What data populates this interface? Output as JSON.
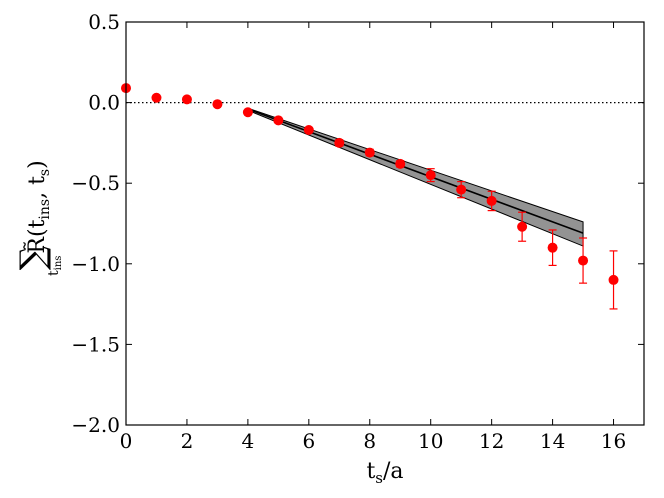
{
  "chart_data": {
    "type": "scatter",
    "xlabel": {
      "main": "t",
      "sub": "s",
      "rest": "/a"
    },
    "ylabel": {
      "sum": "∑",
      "sum_sub": "t",
      "sum_sub2": "ins",
      "main": "R̃(t",
      "arg1_sub": "ins",
      "sep": ", t",
      "arg2_sub": "s",
      "close": ")"
    },
    "xlim": [
      0,
      17
    ],
    "ylim": [
      -2.0,
      0.5
    ],
    "xticks": [
      0,
      2,
      4,
      6,
      8,
      10,
      12,
      14,
      16
    ],
    "yticks": [
      -2.0,
      -1.5,
      -1.0,
      -0.5,
      0.0,
      0.5
    ],
    "xtick_labels": [
      "0",
      "2",
      "4",
      "6",
      "8",
      "10",
      "12",
      "14",
      "16"
    ],
    "ytick_labels": [
      "−2.0",
      "−1.5",
      "−1.0",
      "−0.5",
      "0.0",
      "0.5"
    ],
    "reference_line": {
      "y": 0.0,
      "style": "dotted",
      "color": "#000000"
    },
    "series": [
      {
        "kind": "points",
        "color": "#ff0000",
        "points": [
          {
            "x": 0,
            "y": 0.09,
            "err": 0.0
          },
          {
            "x": 1,
            "y": 0.03,
            "err": 0.0
          },
          {
            "x": 2,
            "y": 0.02,
            "err": 0.0
          },
          {
            "x": 3,
            "y": -0.01,
            "err": 0.0
          },
          {
            "x": 4,
            "y": -0.06,
            "err": 0.0
          },
          {
            "x": 5,
            "y": -0.11,
            "err": 0.01
          },
          {
            "x": 6,
            "y": -0.17,
            "err": 0.01
          },
          {
            "x": 7,
            "y": -0.25,
            "err": 0.02
          },
          {
            "x": 8,
            "y": -0.31,
            "err": 0.02
          },
          {
            "x": 9,
            "y": -0.38,
            "err": 0.02
          },
          {
            "x": 10,
            "y": -0.45,
            "err": 0.04
          },
          {
            "x": 11,
            "y": -0.54,
            "err": 0.05
          },
          {
            "x": 12,
            "y": -0.61,
            "err": 0.06
          },
          {
            "x": 13,
            "y": -0.77,
            "err": 0.09
          },
          {
            "x": 14,
            "y": -0.9,
            "err": 0.11
          },
          {
            "x": 15,
            "y": -0.98,
            "err": 0.14
          },
          {
            "x": 16,
            "y": -1.1,
            "err": 0.18
          }
        ]
      },
      {
        "kind": "fit",
        "color": "#000000",
        "band_color": "#808080",
        "x_range": [
          4,
          15
        ],
        "line": [
          [
            4,
            -0.04
          ],
          [
            15,
            -0.81
          ]
        ],
        "band_upper": [
          [
            4,
            -0.035
          ],
          [
            15,
            -0.74
          ]
        ],
        "band_lower": [
          [
            4,
            -0.048
          ],
          [
            15,
            -0.89
          ]
        ]
      }
    ]
  }
}
